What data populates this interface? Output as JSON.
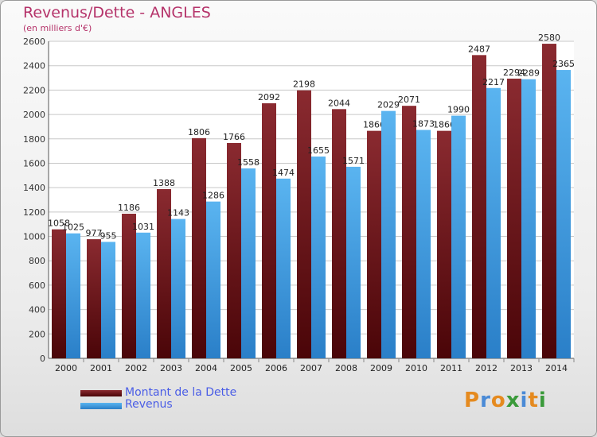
{
  "chart_data": {
    "type": "bar",
    "title": "Revenus/Dette - ANGLES",
    "subtitle": "(en milliers d'€)",
    "categories": [
      "2000",
      "2001",
      "2002",
      "2003",
      "2004",
      "2005",
      "2006",
      "2007",
      "2008",
      "2009",
      "2010",
      "2011",
      "2012",
      "2013",
      "2014"
    ],
    "series": [
      {
        "name": "Montant de la Dette",
        "color": "#7a1a1f",
        "values": [
          1058,
          977,
          1186,
          1388,
          1806,
          1766,
          2092,
          2198,
          2044,
          1866,
          2071,
          1866,
          2487,
          2294,
          2580
        ]
      },
      {
        "name": "Revenus",
        "color": "#4aa3e6",
        "values": [
          1025,
          955,
          1031,
          1143,
          1286,
          1558,
          1474,
          1655,
          1571,
          2029,
          1873,
          1990,
          2217,
          2289,
          2365
        ]
      }
    ],
    "ylim": [
      0,
      2600
    ],
    "ytick_step": 200,
    "grid": true,
    "legend_position": "bottom-left"
  },
  "logo": {
    "text": "Proxiti",
    "letters": [
      {
        "ch": "P",
        "color": "#e58a1f"
      },
      {
        "ch": "r",
        "color": "#4a8ad6"
      },
      {
        "ch": "o",
        "color": "#e58a1f"
      },
      {
        "ch": "x",
        "color": "#3a9a3a"
      },
      {
        "ch": "i",
        "color": "#4a8ad6"
      },
      {
        "ch": "t",
        "color": "#e58a1f"
      },
      {
        "ch": "i",
        "color": "#3a9a3a"
      }
    ]
  }
}
